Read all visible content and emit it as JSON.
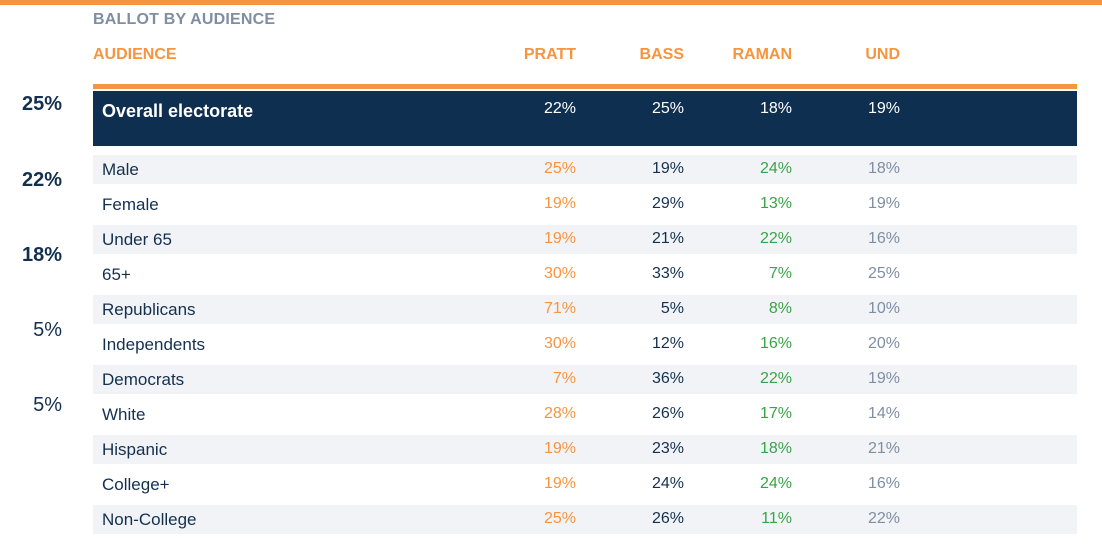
{
  "title": "BALLOT BY AUDIENCE",
  "columns": {
    "audience": "AUDIENCE",
    "pratt": "PRATT",
    "bass": "BASS",
    "raman": "RAMAN",
    "und": "UND"
  },
  "side_values": [
    "25%",
    "22%",
    "18%",
    "5%",
    "5%"
  ],
  "overall": {
    "label": "Overall electorate",
    "pratt": "22%",
    "bass": "25%",
    "raman": "18%",
    "und": "19%"
  },
  "rows": [
    {
      "label": "Male",
      "pratt": "25%",
      "bass": "19%",
      "raman": "24%",
      "und": "18%"
    },
    {
      "label": "Female",
      "pratt": "19%",
      "bass": "29%",
      "raman": "13%",
      "und": "19%"
    },
    {
      "label": "Under 65",
      "pratt": "19%",
      "bass": "21%",
      "raman": "22%",
      "und": "16%"
    },
    {
      "label": "65+",
      "pratt": "30%",
      "bass": "33%",
      "raman": "7%",
      "und": "25%"
    },
    {
      "label": "Republicans",
      "pratt": "71%",
      "bass": "5%",
      "raman": "8%",
      "und": "10%"
    },
    {
      "label": "Independents",
      "pratt": "30%",
      "bass": "12%",
      "raman": "16%",
      "und": "20%"
    },
    {
      "label": "Democrats",
      "pratt": "7%",
      "bass": "36%",
      "raman": "22%",
      "und": "19%"
    },
    {
      "label": "White",
      "pratt": "28%",
      "bass": "26%",
      "raman": "17%",
      "und": "14%"
    },
    {
      "label": "Hispanic",
      "pratt": "19%",
      "bass": "23%",
      "raman": "18%",
      "und": "21%"
    },
    {
      "label": "College+",
      "pratt": "19%",
      "bass": "24%",
      "raman": "24%",
      "und": "16%"
    },
    {
      "label": "Non-College",
      "pratt": "25%",
      "bass": "26%",
      "raman": "11%",
      "und": "22%"
    }
  ],
  "colors": {
    "accent": "#f7943e",
    "navy": "#0f2f50",
    "green": "#3aa347",
    "gray": "#7f8ea3"
  },
  "chart_data": {
    "type": "table",
    "title": "BALLOT BY AUDIENCE",
    "columns": [
      "AUDIENCE",
      "PRATT",
      "BASS",
      "RAMAN",
      "UND"
    ],
    "rows": [
      [
        "Overall electorate",
        22,
        25,
        18,
        19
      ],
      [
        "Male",
        25,
        19,
        24,
        18
      ],
      [
        "Female",
        19,
        29,
        13,
        19
      ],
      [
        "Under 65",
        19,
        21,
        22,
        16
      ],
      [
        "65+",
        30,
        33,
        7,
        25
      ],
      [
        "Republicans",
        71,
        5,
        8,
        10
      ],
      [
        "Independents",
        30,
        12,
        16,
        20
      ],
      [
        "Democrats",
        7,
        36,
        22,
        19
      ],
      [
        "White",
        28,
        26,
        17,
        14
      ],
      [
        "Hispanic",
        19,
        23,
        18,
        21
      ],
      [
        "College+",
        19,
        24,
        24,
        16
      ],
      [
        "Non-College",
        25,
        26,
        11,
        22
      ]
    ]
  }
}
